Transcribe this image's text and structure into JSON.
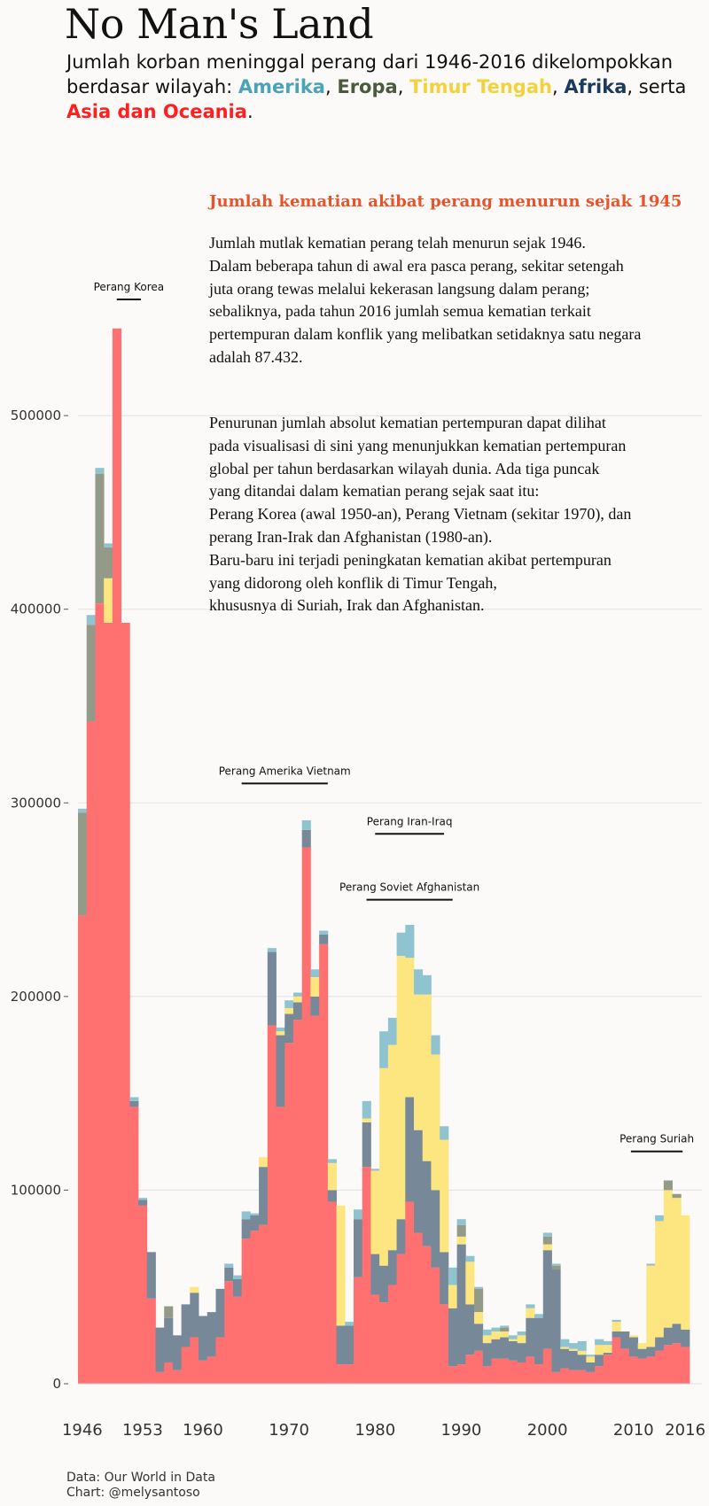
{
  "header": {
    "title": "No Man's Land",
    "subtitle_prefix": "Jumlah korban meninggal perang dari 1946-2016 dikelompokkan berdasar wilayah: ",
    "regions": [
      {
        "label": "Amerika",
        "color": "#4aa3b9"
      },
      {
        "label": "Eropa",
        "color": "#4a5a3c"
      },
      {
        "label": "Timur Tengah",
        "color": "#f2d33b"
      },
      {
        "label": "Afrika",
        "color": "#1b3a5c"
      },
      {
        "label": "Asia dan Oceania",
        "color": "#ff1f1f"
      }
    ],
    "sep_comma": ", ",
    "sep_serta": ", serta",
    "end": "."
  },
  "text_card": {
    "heading": "Jumlah kematian akibat perang menurun sejak 1945",
    "paragraph1_lines": [
      "Jumlah mutlak kematian perang telah menurun sejak 1946.",
      "Dalam beberapa tahun di awal era pasca perang, sekitar setengah",
      "juta orang tewas melalui kekerasan langsung dalam perang;",
      "sebaliknya, pada tahun 2016 jumlah semua kematian terkait",
      "pertempuran dalam konflik yang melibatkan setidaknya satu negara",
      "adalah 87.432."
    ],
    "paragraph2_lines": [
      "Penurunan jumlah absolut kematian pertempuran dapat dilihat",
      "pada visualisasi di sini yang menunjukkan kematian pertempuran",
      "global per tahun berdasarkan wilayah dunia. Ada tiga puncak",
      "yang ditandai dalam kematian perang sejak saat itu:",
      "Perang Korea (awal 1950-an), Perang Vietnam (sekitar 1970), dan",
      "perang Iran-Irak dan Afghanistan (1980-an).",
      "Baru-baru ini terjadi peningkatan kematian akibat pertempuran",
      "yang didorong oleh konflik di Timur Tengah,",
      "khususnya di Suriah, Irak dan Afghanistan."
    ]
  },
  "footer": {
    "source": "Data: Our World in Data",
    "credit": "Chart: @melysantoso"
  },
  "chart_data": {
    "type": "area",
    "stacking": "stacked",
    "ylim": [
      0,
      560000
    ],
    "xlim": [
      1946,
      2016
    ],
    "y_ticks": [
      0,
      100000,
      200000,
      300000,
      400000,
      500000
    ],
    "x_ticks": [
      1946,
      1953,
      1960,
      1970,
      1980,
      1990,
      2000,
      2010,
      2016
    ],
    "grid": true,
    "series_order": [
      "Asia dan Oceania",
      "Afrika",
      "Timur Tengah",
      "Eropa",
      "Amerika"
    ],
    "series": [
      {
        "name": "Asia dan Oceania",
        "color": "#ff7070",
        "values": [
          242000,
          342000,
          403000,
          393000,
          545000,
          393000,
          143000,
          92000,
          44000,
          6000,
          11000,
          7000,
          19000,
          24000,
          12000,
          14000,
          24000,
          53000,
          45000,
          75000,
          79000,
          82000,
          185000,
          143000,
          176000,
          188000,
          277000,
          190000,
          227000,
          94000,
          10000,
          10000,
          55000,
          112000,
          46000,
          42000,
          51000,
          67000,
          94000,
          78000,
          71000,
          60000,
          41000,
          9000,
          10000,
          15000,
          17000,
          9000,
          13000,
          13000,
          12000,
          11000,
          14000,
          10000,
          18000,
          6000,
          8000,
          7000,
          7000,
          6000,
          9000,
          15000,
          24000,
          18000,
          14000,
          13000,
          14000,
          17000,
          20000,
          21000,
          19000
        ]
      },
      {
        "name": "Afrika",
        "color": "#778899",
        "values": [
          0,
          0,
          0,
          0,
          0,
          0,
          3000,
          3000,
          24000,
          23000,
          23000,
          18000,
          22000,
          23000,
          23000,
          23000,
          25000,
          7000,
          9000,
          10000,
          8000,
          30000,
          38000,
          37000,
          15000,
          9000,
          9000,
          10000,
          5000,
          6000,
          20000,
          20000,
          30000,
          23000,
          21000,
          19000,
          18000,
          18000,
          54000,
          53000,
          44000,
          40000,
          27000,
          30000,
          62000,
          26000,
          14000,
          12000,
          10000,
          11000,
          10000,
          10000,
          20000,
          24000,
          51000,
          53000,
          10000,
          10000,
          8000,
          5000,
          6000,
          1000,
          3000,
          9000,
          10000,
          5000,
          5000,
          7000,
          9000,
          10000,
          9000
        ]
      },
      {
        "name": "Timur Tengah",
        "color": "#fde680",
        "values": [
          0,
          0,
          0,
          23000,
          0,
          0,
          0,
          0,
          0,
          0,
          0,
          0,
          0,
          3000,
          0,
          0,
          0,
          0,
          0,
          0,
          0,
          5000,
          0,
          2000,
          3000,
          3000,
          0,
          10000,
          0,
          14000,
          62000,
          0,
          0,
          2000,
          43000,
          102000,
          106000,
          136000,
          72000,
          70000,
          86000,
          70000,
          58000,
          12000,
          4000,
          22000,
          6000,
          4000,
          4000,
          3000,
          1000,
          4000,
          5000,
          0,
          3000,
          0,
          1000,
          1000,
          2000,
          3000,
          5000,
          4000,
          5000,
          0,
          1000,
          3000,
          42000,
          60000,
          71000,
          65000,
          59000
        ]
      },
      {
        "name": "Eropa",
        "color": "#939a88",
        "values": [
          53000,
          50000,
          67000,
          16000,
          0,
          0,
          0,
          0,
          0,
          0,
          6000,
          0,
          0,
          0,
          0,
          0,
          0,
          0,
          0,
          0,
          0,
          0,
          0,
          0,
          0,
          0,
          0,
          0,
          0,
          0,
          0,
          0,
          0,
          0,
          0,
          0,
          0,
          0,
          0,
          0,
          0,
          0,
          0,
          0,
          6000,
          0,
          12000,
          0,
          0,
          2000,
          0,
          0,
          0,
          0,
          4000,
          2000,
          0,
          0,
          0,
          0,
          0,
          0,
          0,
          0,
          0,
          0,
          0,
          0,
          5000,
          2000,
          0
        ]
      },
      {
        "name": "Amerika",
        "color": "#8fc3cf",
        "values": [
          2000,
          5000,
          3000,
          2000,
          0,
          0,
          2000,
          1000,
          0,
          0,
          0,
          0,
          0,
          0,
          0,
          0,
          0,
          2000,
          2000,
          4000,
          1000,
          0,
          2000,
          2000,
          4000,
          2000,
          5000,
          4000,
          2000,
          2000,
          0,
          2000,
          5000,
          9000,
          1000,
          19000,
          14000,
          12000,
          17000,
          13000,
          10000,
          10000,
          7000,
          9000,
          3000,
          3000,
          1000,
          3000,
          2000,
          1000,
          2000,
          2000,
          2000,
          2000,
          2000,
          1000,
          4000,
          3000,
          5000,
          1000,
          3000,
          2000,
          1000,
          0,
          0,
          0,
          1000,
          3000,
          0,
          0,
          0
        ]
      }
    ],
    "annotations": [
      {
        "label": "Perang Korea",
        "year_start": 1950.5,
        "year_end": 1953.3,
        "value": 560000
      },
      {
        "label": "Perang Amerika Vietnam",
        "year_start": 1965,
        "year_end": 1975,
        "value": 310000
      },
      {
        "label": "Perang Iran-Iraq",
        "year_start": 1980.5,
        "year_end": 1988.5,
        "value": 284000
      },
      {
        "label": "Perang Soviet Afghanistan",
        "year_start": 1979.5,
        "year_end": 1989.5,
        "value": 250000
      },
      {
        "label": "Perang Suriah",
        "year_start": 2010.2,
        "year_end": 2016.2,
        "value": 120000
      }
    ]
  }
}
